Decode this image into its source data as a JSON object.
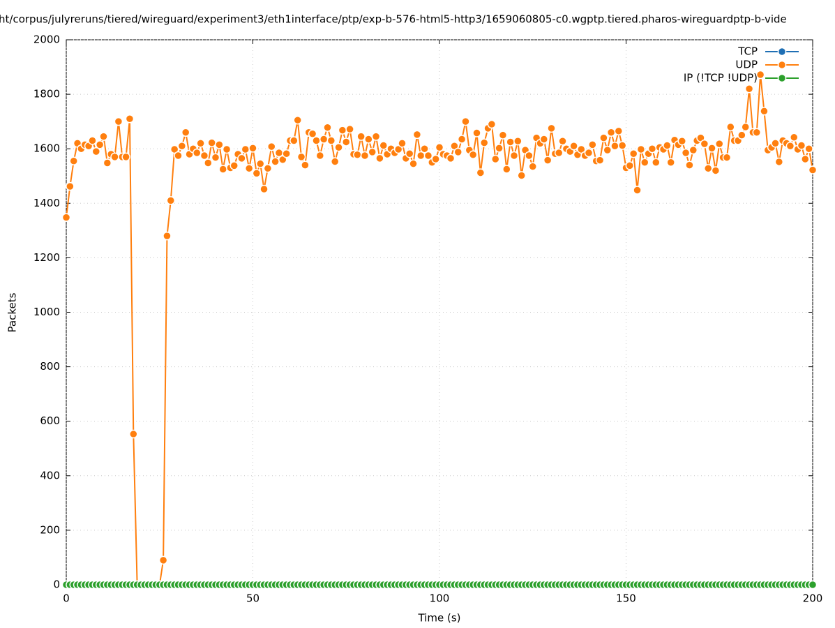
{
  "chart_data": {
    "type": "line",
    "title": "ht/corpus/julyreruns/tiered/wireguard/experiment3/eth1interface/ptp/exp-b-576-html5-http3/1659060805-c0.wgptp.tiered.pharos-wireguardptp-b-vide",
    "x_label": "Time (s)",
    "y_label": "Packets",
    "xlim": [
      0,
      200
    ],
    "xticks": [
      0,
      50,
      100,
      150,
      200
    ],
    "ylim": [
      0,
      2000
    ],
    "yticks": [
      0,
      200,
      400,
      600,
      800,
      1000,
      1200,
      1400,
      1600,
      1800,
      2000
    ],
    "grid": true,
    "legend": "top-right",
    "x": [
      0,
      1,
      2,
      3,
      4,
      5,
      6,
      7,
      8,
      9,
      10,
      11,
      12,
      13,
      14,
      15,
      16,
      17,
      18,
      19,
      20,
      21,
      22,
      23,
      24,
      25,
      26,
      27,
      28,
      29,
      30,
      31,
      32,
      33,
      34,
      35,
      36,
      37,
      38,
      39,
      40,
      41,
      42,
      43,
      44,
      45,
      46,
      47,
      48,
      49,
      50,
      51,
      52,
      53,
      54,
      55,
      56,
      57,
      58,
      59,
      60,
      61,
      62,
      63,
      64,
      65,
      66,
      67,
      68,
      69,
      70,
      71,
      72,
      73,
      74,
      75,
      76,
      77,
      78,
      79,
      80,
      81,
      82,
      83,
      84,
      85,
      86,
      87,
      88,
      89,
      90,
      91,
      92,
      93,
      94,
      95,
      96,
      97,
      98,
      99,
      100,
      101,
      102,
      103,
      104,
      105,
      106,
      107,
      108,
      109,
      110,
      111,
      112,
      113,
      114,
      115,
      116,
      117,
      118,
      119,
      120,
      121,
      122,
      123,
      124,
      125,
      126,
      127,
      128,
      129,
      130,
      131,
      132,
      133,
      134,
      135,
      136,
      137,
      138,
      139,
      140,
      141,
      142,
      143,
      144,
      145,
      146,
      147,
      148,
      149,
      150,
      151,
      152,
      153,
      154,
      155,
      156,
      157,
      158,
      159,
      160,
      161,
      162,
      163,
      164,
      165,
      166,
      167,
      168,
      169,
      170,
      171,
      172,
      173,
      174,
      175,
      176,
      177,
      178,
      179,
      180,
      181,
      182,
      183,
      184,
      185,
      186,
      187,
      188,
      189,
      190,
      191,
      192,
      193,
      194,
      195,
      196,
      197,
      198,
      199,
      200
    ],
    "series": [
      {
        "name": "TCP",
        "color": "#1f6fb4",
        "values": [
          0,
          0,
          0,
          0,
          0,
          0,
          0,
          0,
          0,
          0,
          0,
          0,
          0,
          0,
          0,
          0,
          0,
          0,
          0,
          0,
          0,
          0,
          0,
          0,
          0,
          0,
          0,
          0,
          0,
          0,
          0,
          0,
          0,
          0,
          0,
          0,
          0,
          0,
          0,
          0,
          0,
          0,
          0,
          0,
          0,
          0,
          0,
          0,
          0,
          0,
          0,
          0,
          0,
          0,
          0,
          0,
          0,
          0,
          0,
          0,
          0,
          0,
          0,
          0,
          0,
          0,
          0,
          0,
          0,
          0,
          0,
          0,
          0,
          0,
          0,
          0,
          0,
          0,
          0,
          0,
          0,
          0,
          0,
          0,
          0,
          0,
          0,
          0,
          0,
          0,
          0,
          0,
          0,
          0,
          0,
          0,
          0,
          0,
          0,
          0,
          0,
          0,
          0,
          0,
          0,
          0,
          0,
          0,
          0,
          0,
          0,
          0,
          0,
          0,
          0,
          0,
          0,
          0,
          0,
          0,
          0,
          0,
          0,
          0,
          0,
          0,
          0,
          0,
          0,
          0,
          0,
          0,
          0,
          0,
          0,
          0,
          0,
          0,
          0,
          0,
          0,
          0,
          0,
          0,
          0,
          0,
          0,
          0,
          0,
          0,
          0,
          0,
          0,
          0,
          0,
          0,
          0,
          0,
          0,
          0,
          0,
          0,
          0,
          0,
          0,
          0,
          0,
          0,
          0,
          0,
          0,
          0,
          0,
          0,
          0,
          0,
          0,
          0,
          0,
          0,
          0,
          0,
          0,
          0,
          0,
          0,
          0,
          0,
          0,
          0,
          0,
          0,
          0,
          0,
          0,
          0,
          0,
          0,
          0,
          0,
          0
        ]
      },
      {
        "name": "UDP",
        "color": "#ff7f0e",
        "values": [
          1348,
          1462,
          1555,
          1620,
          1600,
          1615,
          1610,
          1630,
          1590,
          1615,
          1645,
          1548,
          1580,
          1570,
          1700,
          1570,
          1570,
          1710,
          553,
          0,
          0,
          0,
          0,
          0,
          0,
          0,
          90,
          1280,
          1410,
          1598,
          1575,
          1610,
          1660,
          1580,
          1600,
          1585,
          1620,
          1575,
          1548,
          1622,
          1568,
          1615,
          1525,
          1598,
          1530,
          1538,
          1580,
          1565,
          1598,
          1528,
          1602,
          1510,
          1545,
          1452,
          1528,
          1608,
          1553,
          1585,
          1560,
          1582,
          1630,
          1630,
          1705,
          1570,
          1540,
          1660,
          1655,
          1630,
          1575,
          1635,
          1678,
          1630,
          1553,
          1605,
          1668,
          1625,
          1672,
          1580,
          1578,
          1645,
          1575,
          1635,
          1588,
          1645,
          1565,
          1612,
          1580,
          1600,
          1585,
          1598,
          1620,
          1565,
          1582,
          1545,
          1652,
          1575,
          1600,
          1575,
          1550,
          1562,
          1605,
          1580,
          1575,
          1565,
          1610,
          1588,
          1635,
          1700,
          1595,
          1578,
          1658,
          1512,
          1622,
          1675,
          1690,
          1562,
          1602,
          1650,
          1525,
          1625,
          1575,
          1628,
          1502,
          1595,
          1575,
          1535,
          1640,
          1620,
          1635,
          1558,
          1675,
          1582,
          1585,
          1628,
          1600,
          1590,
          1610,
          1578,
          1598,
          1575,
          1585,
          1615,
          1555,
          1558,
          1640,
          1595,
          1660,
          1610,
          1665,
          1612,
          1530,
          1538,
          1582,
          1448,
          1598,
          1550,
          1582,
          1600,
          1550,
          1605,
          1598,
          1612,
          1550,
          1632,
          1615,
          1628,
          1585,
          1540,
          1595,
          1630,
          1640,
          1618,
          1528,
          1602,
          1520,
          1618,
          1568,
          1568,
          1680,
          1630,
          1630,
          1650,
          1680,
          1820,
          1660,
          1660,
          1872,
          1738,
          1595,
          1605,
          1620,
          1552,
          1630,
          1620,
          1610,
          1642,
          1598,
          1612,
          1562,
          1600,
          1522
        ]
      },
      {
        "name": "IP (!TCP  !UDP)",
        "color": "#2ca02c",
        "values": [
          0,
          0,
          0,
          0,
          0,
          0,
          0,
          0,
          0,
          0,
          0,
          0,
          0,
          0,
          0,
          0,
          0,
          0,
          0,
          0,
          0,
          0,
          0,
          0,
          0,
          0,
          0,
          0,
          0,
          0,
          0,
          0,
          0,
          0,
          0,
          0,
          0,
          0,
          0,
          0,
          0,
          0,
          0,
          0,
          0,
          0,
          0,
          0,
          0,
          0,
          0,
          0,
          0,
          0,
          0,
          0,
          0,
          0,
          0,
          0,
          0,
          0,
          0,
          0,
          0,
          0,
          0,
          0,
          0,
          0,
          0,
          0,
          0,
          0,
          0,
          0,
          0,
          0,
          0,
          0,
          0,
          0,
          0,
          0,
          0,
          0,
          0,
          0,
          0,
          0,
          0,
          0,
          0,
          0,
          0,
          0,
          0,
          0,
          0,
          0,
          0,
          0,
          0,
          0,
          0,
          0,
          0,
          0,
          0,
          0,
          0,
          0,
          0,
          0,
          0,
          0,
          0,
          0,
          0,
          0,
          0,
          0,
          0,
          0,
          0,
          0,
          0,
          0,
          0,
          0,
          0,
          0,
          0,
          0,
          0,
          0,
          0,
          0,
          0,
          0,
          0,
          0,
          0,
          0,
          0,
          0,
          0,
          0,
          0,
          0,
          0,
          0,
          0,
          0,
          0,
          0,
          0,
          0,
          0,
          0,
          0,
          0,
          0,
          0,
          0,
          0,
          0,
          0,
          0,
          0,
          0,
          0,
          0,
          0,
          0,
          0,
          0,
          0,
          0,
          0,
          0,
          0,
          0,
          0,
          0,
          0,
          0,
          0,
          0,
          0,
          0,
          0,
          0,
          0,
          0,
          0,
          0,
          0,
          0,
          0,
          0
        ]
      }
    ]
  }
}
